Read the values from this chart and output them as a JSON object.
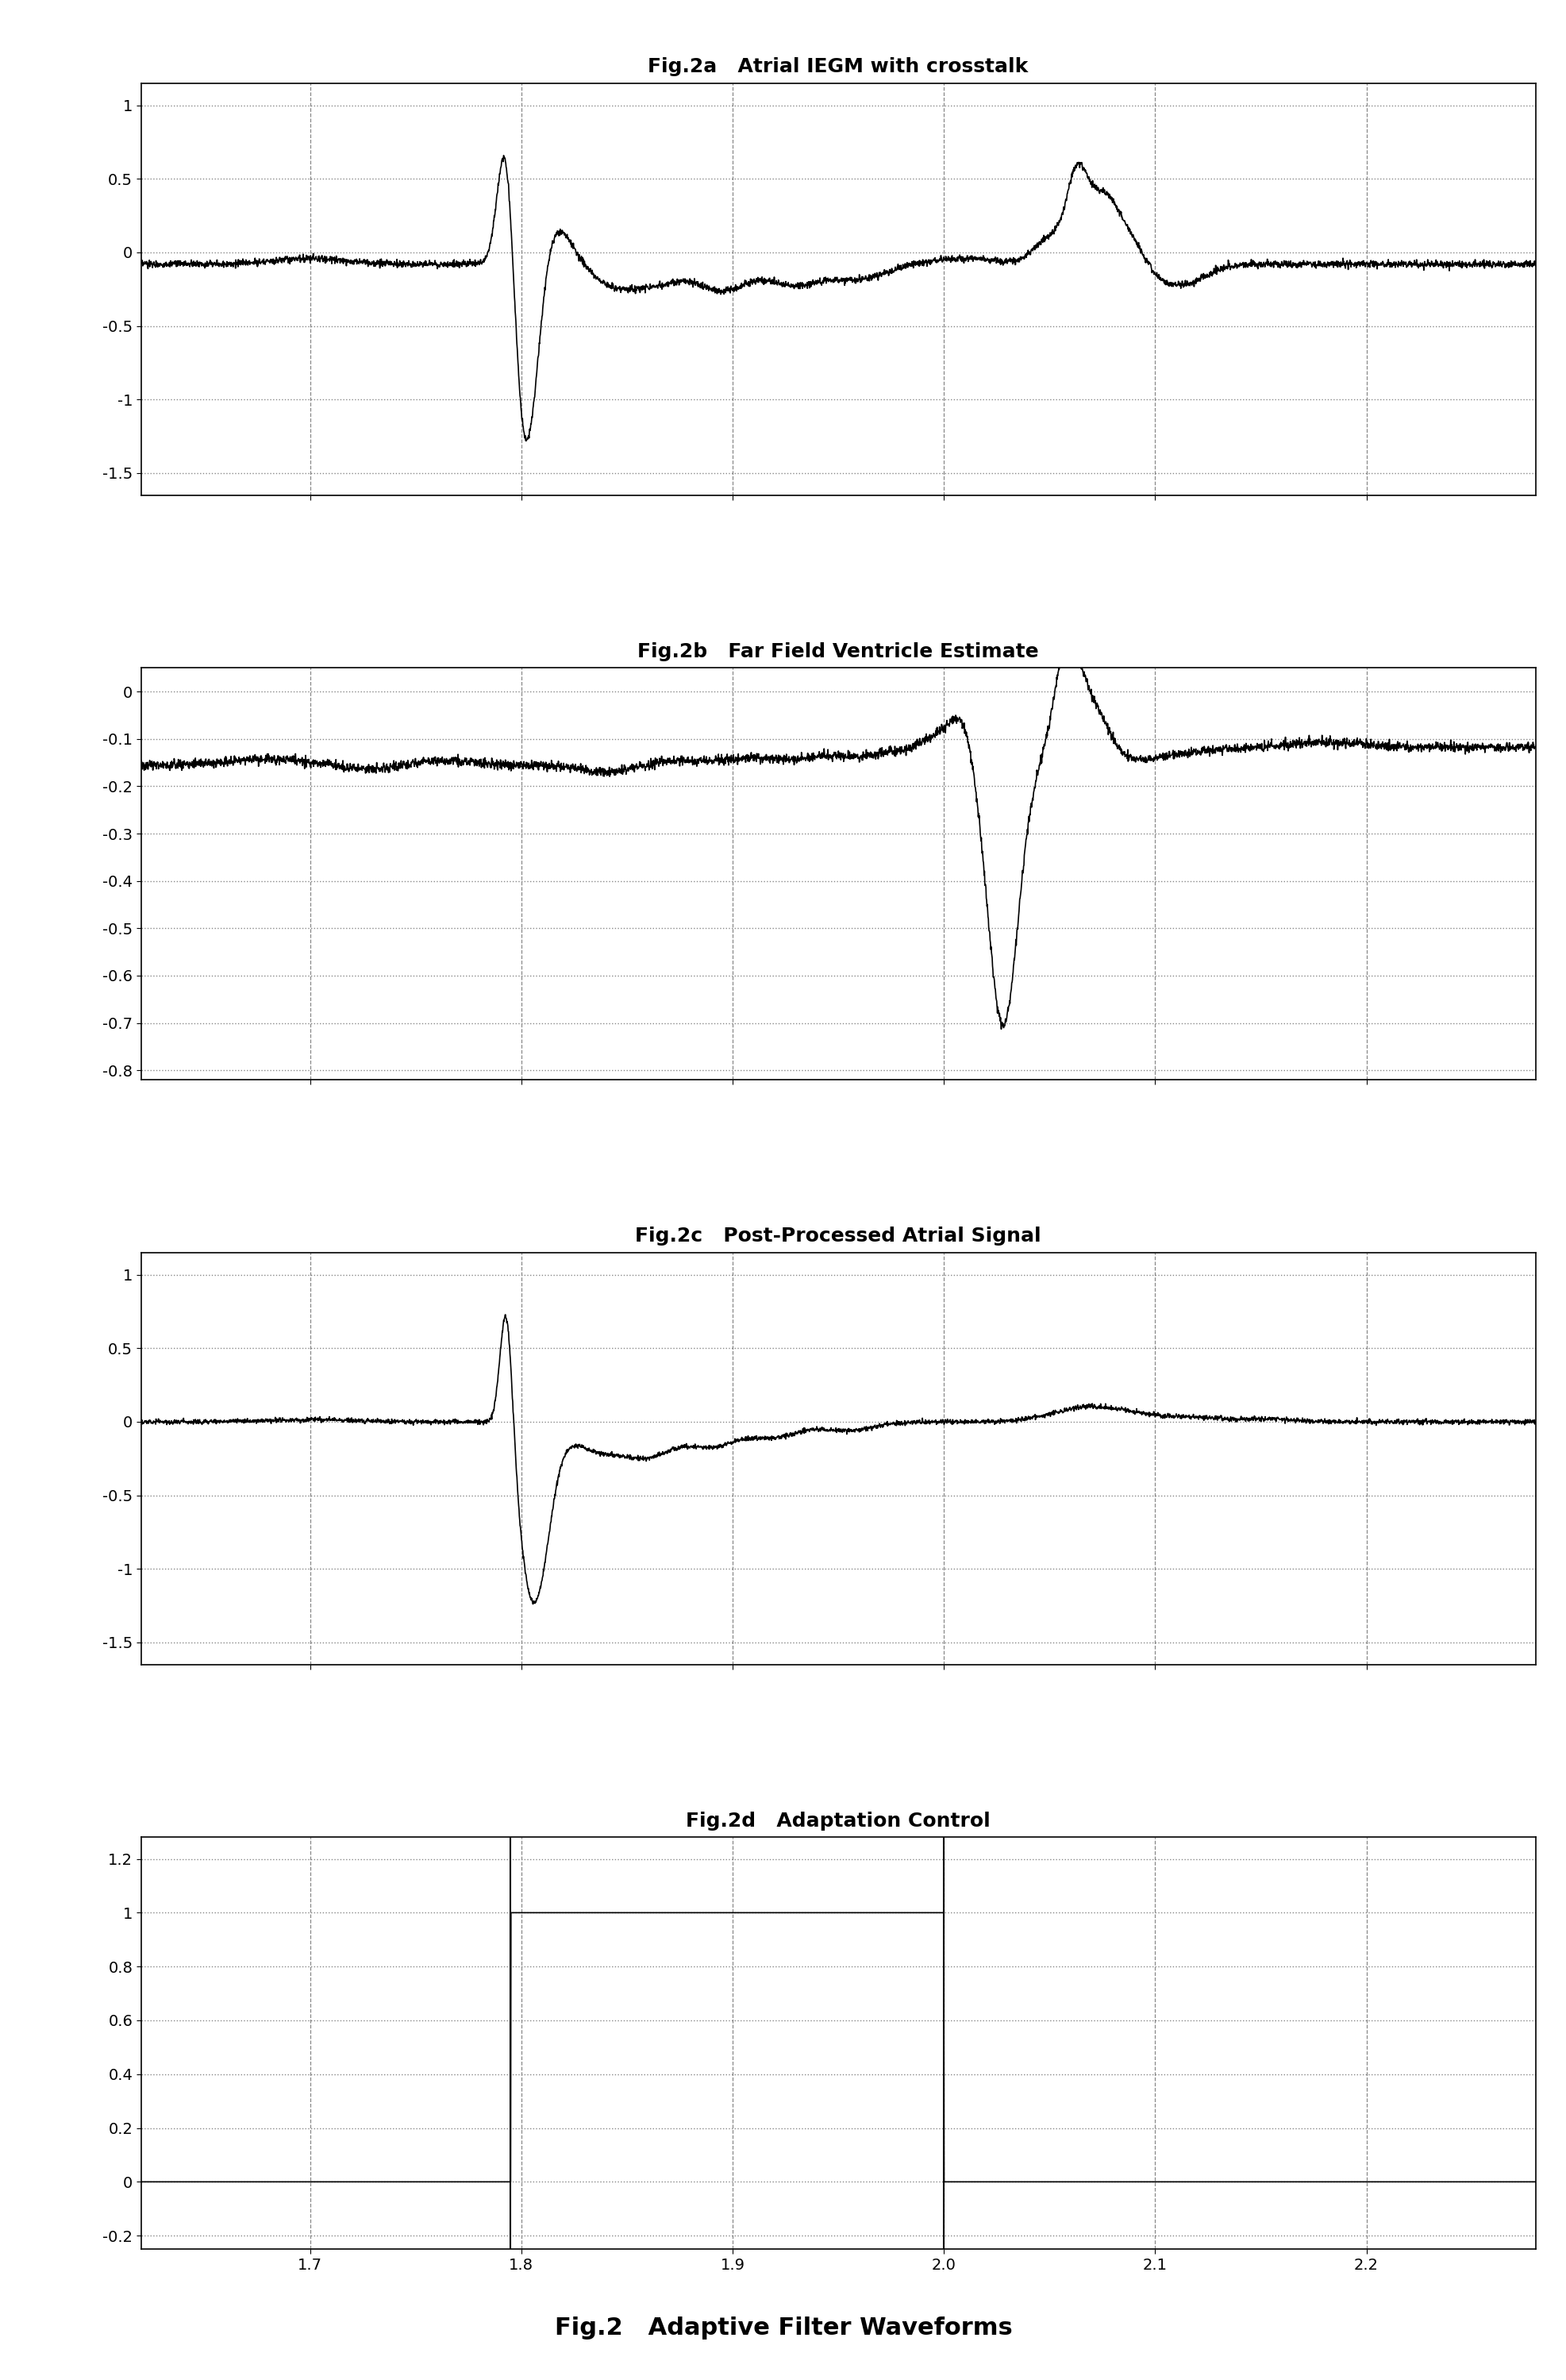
{
  "fig_title": "Fig.2   Adaptive Filter Waveforms",
  "fig_title_fontsize": 22,
  "subplot_titles": [
    "Fig.2a   Atrial IEGM with crosstalk",
    "Fig.2b   Far Field Ventricle Estimate",
    "Fig.2c   Post-Processed Atrial Signal",
    "Fig.2d   Adaptation Control"
  ],
  "subplot_title_fontsize": 18,
  "xlim": [
    1.62,
    2.28
  ],
  "xticks": [
    1.7,
    1.8,
    1.9,
    2.0,
    2.1,
    2.2
  ],
  "tick_fontsize": 14,
  "panel_a": {
    "ylim": [
      -1.65,
      1.15
    ],
    "yticks": [
      -1.5,
      -1.0,
      -0.5,
      0,
      0.5,
      1.0
    ]
  },
  "panel_b": {
    "ylim": [
      -0.82,
      0.05
    ],
    "yticks": [
      0.0,
      -0.1,
      -0.2,
      -0.3,
      -0.4,
      -0.5,
      -0.6,
      -0.7,
      -0.8
    ]
  },
  "panel_c": {
    "ylim": [
      -1.65,
      1.15
    ],
    "yticks": [
      -1.5,
      -1.0,
      -0.5,
      0,
      0.5,
      1.0
    ]
  },
  "panel_d": {
    "ylim": [
      -0.25,
      1.28
    ],
    "yticks": [
      -0.2,
      0.0,
      0.2,
      0.4,
      0.6,
      0.8,
      1.0,
      1.2
    ]
  },
  "background_color": "#ffffff",
  "line_color": "#000000",
  "grid_dash_color": "#888888",
  "grid_dot_color": "#888888"
}
